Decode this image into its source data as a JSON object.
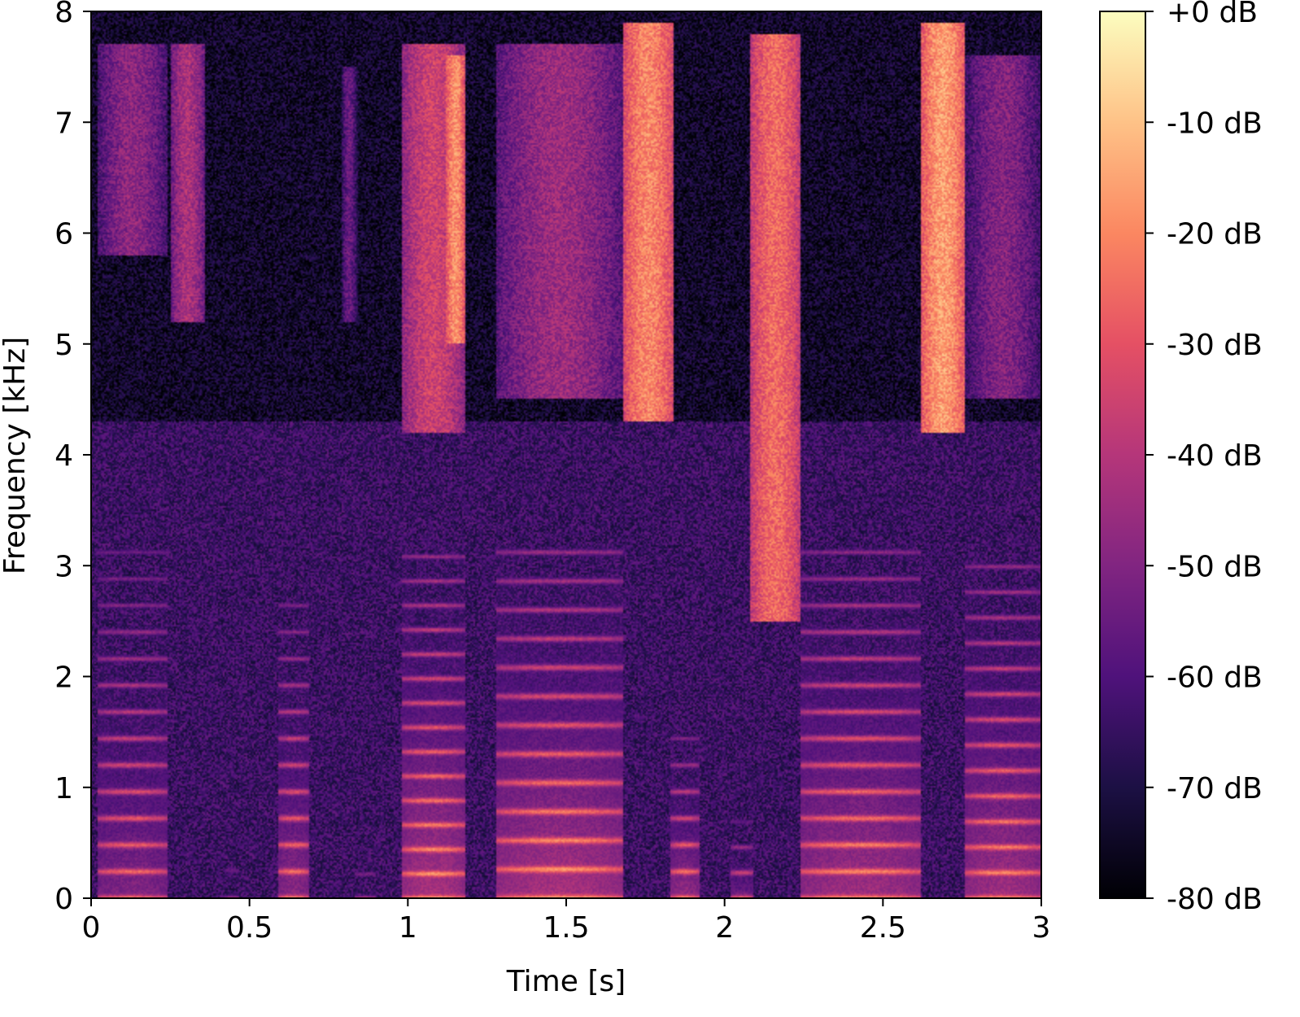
{
  "chart_data": {
    "type": "heatmap",
    "title": "",
    "xlabel": "Time [s]",
    "ylabel": "Frequency [kHz]",
    "xlim": [
      0,
      3
    ],
    "ylim": [
      0,
      8
    ],
    "x_ticks": [
      0,
      0.5,
      1,
      1.5,
      2,
      2.5,
      3
    ],
    "x_tick_labels": [
      "0",
      "0.5",
      "1",
      "1.5",
      "2",
      "2.5",
      "3"
    ],
    "y_ticks": [
      0,
      1,
      2,
      3,
      4,
      5,
      6,
      7,
      8
    ],
    "y_tick_labels": [
      "0",
      "1",
      "2",
      "3",
      "4",
      "5",
      "6",
      "7",
      "8"
    ],
    "colormap": "magma",
    "colorbar": {
      "range": [
        -80,
        0
      ],
      "ticks": [
        0,
        -10,
        -20,
        -30,
        -40,
        -50,
        -60,
        -70,
        -80
      ],
      "tick_labels": [
        "+0 dB",
        "-10 dB",
        "-20 dB",
        "-30 dB",
        "-40 dB",
        "-50 dB",
        "-60 dB",
        "-70 dB",
        "-80 dB"
      ]
    },
    "grid": false,
    "segments": [
      {
        "t0": 0.02,
        "t1": 0.24,
        "f0_khz": 0.24,
        "fmax_khz": 3.0,
        "level_db": -22,
        "hf_level_db": -48,
        "hf_from": 5.8,
        "hf_to": 7.7,
        "kind": "voiced"
      },
      {
        "t0": 0.25,
        "t1": 0.36,
        "f0_khz": 0.0,
        "fmax_khz": 0.0,
        "level_db": -60,
        "hf_level_db": -42,
        "hf_from": 5.2,
        "hf_to": 7.7,
        "kind": "fricative"
      },
      {
        "t0": 0.42,
        "t1": 0.47,
        "f0_khz": 0.25,
        "fmax_khz": 0.8,
        "level_db": -45,
        "hf_level_db": -70,
        "hf_from": 0,
        "hf_to": 0,
        "kind": "voiced"
      },
      {
        "t0": 0.59,
        "t1": 0.69,
        "f0_khz": 0.24,
        "fmax_khz": 2.6,
        "level_db": -20,
        "hf_level_db": -60,
        "hf_from": 0,
        "hf_to": 0,
        "kind": "voiced"
      },
      {
        "t0": 0.79,
        "t1": 0.84,
        "f0_khz": 0.0,
        "fmax_khz": 0.0,
        "level_db": -65,
        "hf_level_db": -55,
        "hf_from": 5.2,
        "hf_to": 7.5,
        "kind": "fricative"
      },
      {
        "t0": 0.83,
        "t1": 0.9,
        "f0_khz": 0.22,
        "fmax_khz": 0.6,
        "level_db": -40,
        "hf_level_db": -70,
        "hf_from": 0,
        "hf_to": 0,
        "kind": "voiced"
      },
      {
        "t0": 0.98,
        "t1": 1.18,
        "f0_khz": 0.22,
        "fmax_khz": 3.0,
        "level_db": -14,
        "hf_level_db": -35,
        "hf_from": 4.2,
        "hf_to": 7.7,
        "kind": "voiced"
      },
      {
        "t0": 1.12,
        "t1": 1.18,
        "f0_khz": 0.0,
        "fmax_khz": 0.0,
        "level_db": -60,
        "hf_level_db": -18,
        "hf_from": 5.0,
        "hf_to": 7.6,
        "kind": "fricative"
      },
      {
        "t0": 1.28,
        "t1": 1.68,
        "f0_khz": 0.26,
        "fmax_khz": 3.0,
        "level_db": -14,
        "hf_level_db": -45,
        "hf_from": 4.5,
        "hf_to": 7.7,
        "kind": "voiced"
      },
      {
        "t0": 1.68,
        "t1": 1.84,
        "f0_khz": 0.0,
        "fmax_khz": 0.0,
        "level_db": -60,
        "hf_level_db": -20,
        "hf_from": 4.3,
        "hf_to": 7.9,
        "kind": "fricative"
      },
      {
        "t0": 1.83,
        "t1": 1.92,
        "f0_khz": 0.24,
        "fmax_khz": 1.4,
        "level_db": -18,
        "hf_level_db": -60,
        "hf_from": 0,
        "hf_to": 0,
        "kind": "voiced"
      },
      {
        "t0": 2.02,
        "t1": 2.09,
        "f0_khz": 0.23,
        "fmax_khz": 0.7,
        "level_db": -25,
        "hf_level_db": -60,
        "hf_from": 0,
        "hf_to": 0,
        "kind": "voiced"
      },
      {
        "t0": 2.08,
        "t1": 2.24,
        "f0_khz": 0.0,
        "fmax_khz": 0.0,
        "level_db": -60,
        "hf_level_db": -25,
        "hf_from": 2.5,
        "hf_to": 7.8,
        "kind": "fricative"
      },
      {
        "t0": 2.24,
        "t1": 2.62,
        "f0_khz": 0.24,
        "fmax_khz": 3.0,
        "level_db": -16,
        "hf_level_db": -65,
        "hf_from": 0,
        "hf_to": 0,
        "kind": "voiced"
      },
      {
        "t0": 2.62,
        "t1": 2.76,
        "f0_khz": 0.0,
        "fmax_khz": 0.0,
        "level_db": -60,
        "hf_level_db": -16,
        "hf_from": 4.2,
        "hf_to": 7.9,
        "kind": "fricative"
      },
      {
        "t0": 2.76,
        "t1": 3.0,
        "f0_khz": 0.23,
        "fmax_khz": 3.0,
        "level_db": -16,
        "hf_level_db": -50,
        "hf_from": 4.5,
        "hf_to": 7.6,
        "kind": "voiced"
      }
    ]
  }
}
